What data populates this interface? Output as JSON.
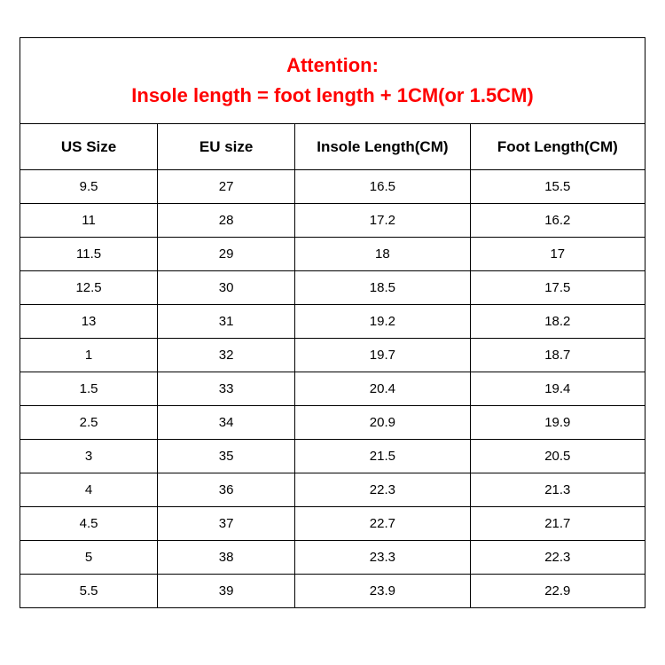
{
  "attention": {
    "line1": "Attention:",
    "line2": "Insole length = foot length + 1CM(or 1.5CM)",
    "color": "#ff0000",
    "fontsize": 22
  },
  "table": {
    "type": "table",
    "border_color": "#000000",
    "background_color": "#ffffff",
    "text_color": "#000000",
    "header_fontsize": 17,
    "cell_fontsize": 15,
    "column_widths_pct": [
      22,
      22,
      28,
      28
    ],
    "columns": [
      {
        "label": "US Size",
        "align": "center"
      },
      {
        "label": "EU size",
        "align": "center"
      },
      {
        "label": "Insole Length(CM)",
        "align": "center"
      },
      {
        "label": "Foot Length(CM)",
        "align": "center"
      }
    ],
    "rows": [
      [
        "9.5",
        "27",
        "16.5",
        "15.5"
      ],
      [
        "11",
        "28",
        "17.2",
        "16.2"
      ],
      [
        "11.5",
        "29",
        "18",
        "17"
      ],
      [
        "12.5",
        "30",
        "18.5",
        "17.5"
      ],
      [
        "13",
        "31",
        "19.2",
        "18.2"
      ],
      [
        "1",
        "32",
        "19.7",
        "18.7"
      ],
      [
        "1.5",
        "33",
        "20.4",
        "19.4"
      ],
      [
        "2.5",
        "34",
        "20.9",
        "19.9"
      ],
      [
        "3",
        "35",
        "21.5",
        "20.5"
      ],
      [
        "4",
        "36",
        "22.3",
        "21.3"
      ],
      [
        "4.5",
        "37",
        "22.7",
        "21.7"
      ],
      [
        "5",
        "38",
        "23.3",
        "22.3"
      ],
      [
        "5.5",
        "39",
        "23.9",
        "22.9"
      ]
    ]
  }
}
